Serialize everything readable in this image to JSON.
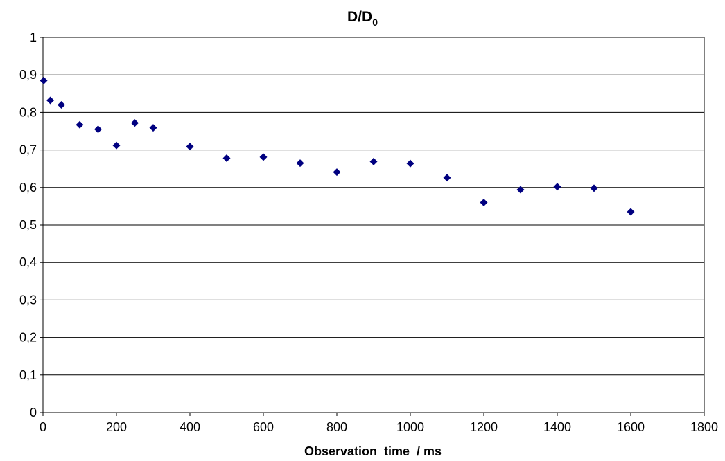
{
  "chart_data": {
    "type": "scatter",
    "title": "D/D",
    "title_subscript": "0",
    "xlabel": "Observation  time  / ms",
    "ylabel": "",
    "xlim": [
      0,
      1800
    ],
    "ylim": [
      0,
      1
    ],
    "x_ticks": [
      0,
      200,
      400,
      600,
      800,
      1000,
      1200,
      1400,
      1600,
      1800
    ],
    "x_tick_labels": [
      "0",
      "200",
      "400",
      "600",
      "800",
      "1000",
      "1200",
      "1400",
      "1600",
      "1800"
    ],
    "y_ticks": [
      0,
      0.1,
      0.2,
      0.3,
      0.4,
      0.5,
      0.6,
      0.7,
      0.8,
      0.9,
      1
    ],
    "y_tick_labels": [
      "0",
      "0,1",
      "0,2",
      "0,3",
      "0,4",
      "0,5",
      "0,6",
      "0,7",
      "0,8",
      "0,9",
      "1"
    ],
    "grid": "horizontal",
    "marker": "diamond",
    "marker_color": "#000080",
    "series": [
      {
        "x": [
          2,
          20,
          50,
          100,
          150,
          200,
          250,
          300,
          400,
          500,
          600,
          700,
          800,
          900,
          1000,
          1100,
          1200,
          1300,
          1400,
          1500,
          1600
        ],
        "values": [
          0.885,
          0.832,
          0.82,
          0.767,
          0.755,
          0.712,
          0.772,
          0.759,
          0.709,
          0.678,
          0.681,
          0.665,
          0.641,
          0.669,
          0.664,
          0.626,
          0.56,
          0.594,
          0.602,
          0.598,
          0.535
        ]
      }
    ]
  }
}
